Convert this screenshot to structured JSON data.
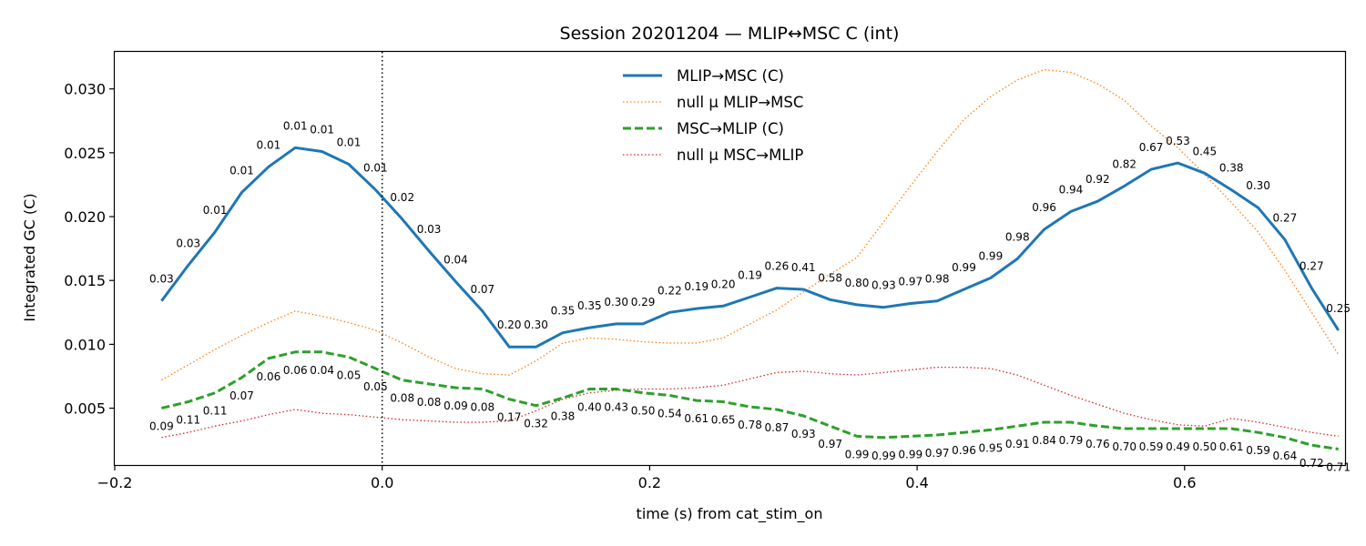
{
  "chart_data": {
    "type": "line",
    "title": "Session 20201204 — MLIP↔MSC C (int)",
    "xlabel": "time (s) from cat_stim_on",
    "ylabel": "Integrated GC (C)",
    "xlim": [
      -0.2,
      0.72
    ],
    "ylim": [
      0.00055,
      0.0329
    ],
    "xticks": [
      -0.2,
      0.0,
      0.2,
      0.4,
      0.6
    ],
    "xtick_labels": [
      "−0.2",
      "0.0",
      "0.2",
      "0.4",
      "0.6"
    ],
    "yticks": [
      0.005,
      0.01,
      0.015,
      0.02,
      0.025,
      0.03
    ],
    "ytick_labels": [
      "0.005",
      "0.010",
      "0.015",
      "0.020",
      "0.025",
      "0.030"
    ],
    "vline_x": 0.0,
    "legend_position": "upper center",
    "x": [
      -0.165,
      -0.145,
      -0.125,
      -0.105,
      -0.085,
      -0.065,
      -0.045,
      -0.025,
      -0.005,
      0.015,
      0.035,
      0.055,
      0.075,
      0.095,
      0.115,
      0.135,
      0.155,
      0.175,
      0.195,
      0.215,
      0.235,
      0.255,
      0.275,
      0.295,
      0.315,
      0.335,
      0.355,
      0.375,
      0.395,
      0.415,
      0.435,
      0.455,
      0.475,
      0.495,
      0.515,
      0.535,
      0.555,
      0.575,
      0.595,
      0.615,
      0.635,
      0.655,
      0.675,
      0.695,
      0.715
    ],
    "series": [
      {
        "name": "MLIP→MSC (C)",
        "color": "#1f77b4",
        "style": "solid",
        "values": [
          0.0134,
          0.0162,
          0.0188,
          0.0219,
          0.0239,
          0.0254,
          0.0251,
          0.0241,
          0.0221,
          0.0198,
          0.0173,
          0.0149,
          0.0126,
          0.0098,
          0.0098,
          0.0109,
          0.0113,
          0.0116,
          0.0116,
          0.0125,
          0.0128,
          0.013,
          0.0137,
          0.0144,
          0.0143,
          0.0135,
          0.0131,
          0.0129,
          0.0132,
          0.0134,
          0.0143,
          0.0152,
          0.0167,
          0.019,
          0.0204,
          0.0212,
          0.0224,
          0.0237,
          0.0242,
          0.0234,
          0.0221,
          0.0207,
          0.0182,
          0.0144,
          0.0111
        ]
      },
      {
        "name": "null μ MLIP→MSC",
        "color": "#ff7f0e",
        "style": "dotted",
        "values": [
          0.0072,
          0.0084,
          0.0096,
          0.0107,
          0.0117,
          0.0126,
          0.0122,
          0.0117,
          0.0111,
          0.0101,
          0.009,
          0.0081,
          0.0077,
          0.0076,
          0.0087,
          0.0101,
          0.0105,
          0.0104,
          0.0102,
          0.0101,
          0.0101,
          0.0105,
          0.0116,
          0.0127,
          0.0141,
          0.0155,
          0.0168,
          0.0196,
          0.0224,
          0.0251,
          0.0276,
          0.0294,
          0.0307,
          0.0315,
          0.0313,
          0.0304,
          0.0291,
          0.0271,
          0.0254,
          0.0233,
          0.0211,
          0.0188,
          0.0158,
          0.0125,
          0.0092
        ]
      },
      {
        "name": "MSC→MLIP (C)",
        "color": "#2ca02c",
        "style": "dashed",
        "values": [
          0.005,
          0.0055,
          0.0062,
          0.0074,
          0.0089,
          0.0094,
          0.0094,
          0.009,
          0.0081,
          0.0072,
          0.0069,
          0.0066,
          0.0065,
          0.0057,
          0.0052,
          0.0058,
          0.0065,
          0.0065,
          0.0062,
          0.006,
          0.0056,
          0.0055,
          0.0051,
          0.0049,
          0.0044,
          0.0036,
          0.0028,
          0.0027,
          0.0028,
          0.0029,
          0.0031,
          0.0033,
          0.0036,
          0.0039,
          0.0039,
          0.0036,
          0.0034,
          0.0034,
          0.0034,
          0.0034,
          0.0034,
          0.0031,
          0.0027,
          0.0021,
          0.0018
        ]
      },
      {
        "name": "null μ MSC→MLIP",
        "color": "#d62728",
        "style": "dotted",
        "values": [
          0.0027,
          0.0031,
          0.0036,
          0.004,
          0.0045,
          0.0049,
          0.0046,
          0.0045,
          0.0043,
          0.0041,
          0.004,
          0.0039,
          0.0039,
          0.004,
          0.0048,
          0.0057,
          0.0062,
          0.0064,
          0.0065,
          0.0065,
          0.0066,
          0.0068,
          0.0073,
          0.0078,
          0.0079,
          0.0077,
          0.0076,
          0.0078,
          0.008,
          0.0082,
          0.0082,
          0.0081,
          0.0076,
          0.0068,
          0.006,
          0.0053,
          0.0046,
          0.0041,
          0.0037,
          0.0036,
          0.0042,
          0.0039,
          0.0035,
          0.0031,
          0.0028
        ]
      }
    ],
    "annotations_top": [
      "0.03",
      "0.03",
      "0.01",
      "0.01",
      "0.01",
      "0.01",
      "0.01",
      "0.01",
      "0.01",
      "0.02",
      "0.03",
      "0.04",
      "0.07",
      "0.20",
      "0.30",
      "0.35",
      "0.35",
      "0.30",
      "0.29",
      "0.22",
      "0.19",
      "0.20",
      "0.19",
      "0.26",
      "0.41",
      "0.58",
      "0.80",
      "0.93",
      "0.97",
      "0.98",
      "0.99",
      "0.99",
      "0.98",
      "0.96",
      "0.94",
      "0.92",
      "0.82",
      "0.67",
      "0.53",
      "0.45",
      "0.38",
      "0.30",
      "0.27",
      "0.27",
      "0.25"
    ],
    "annotations_bottom": [
      "0.09",
      "0.11",
      "0.11",
      "0.07",
      "0.06",
      "0.06",
      "0.04",
      "0.05",
      "0.05",
      "0.08",
      "0.08",
      "0.09",
      "0.08",
      "0.17",
      "0.32",
      "0.38",
      "0.40",
      "0.43",
      "0.50",
      "0.54",
      "0.61",
      "0.65",
      "0.78",
      "0.87",
      "0.93",
      "0.97",
      "0.99",
      "0.99",
      "0.99",
      "0.97",
      "0.96",
      "0.95",
      "0.91",
      "0.84",
      "0.79",
      "0.76",
      "0.70",
      "0.59",
      "0.49",
      "0.50",
      "0.61",
      "0.59",
      "0.64",
      "0.72",
      "0.71"
    ]
  }
}
